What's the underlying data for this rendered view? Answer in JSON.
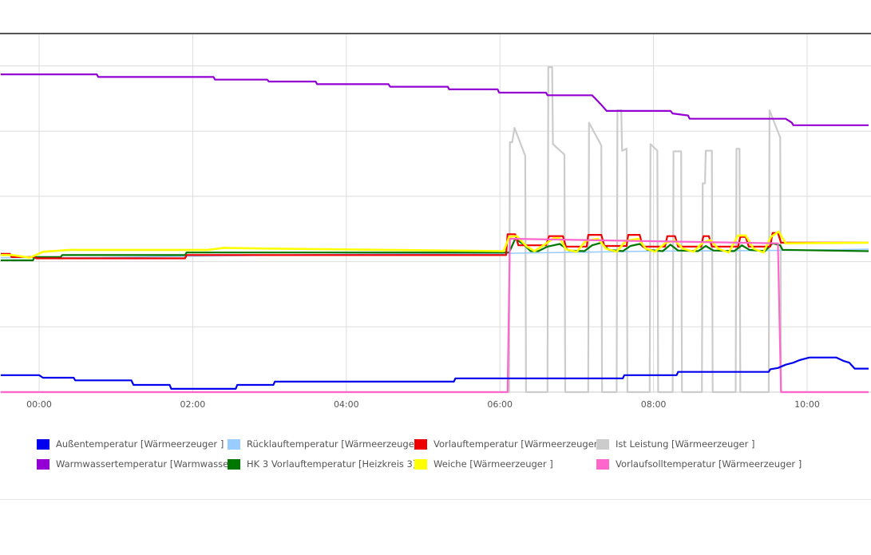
{
  "chart_data": {
    "type": "line",
    "x_unit": "hours",
    "xlim": [
      -0.5,
      10.8
    ],
    "ylim": [
      0,
      58
    ],
    "y_axis_labels_shown": false,
    "grid": true,
    "x_ticks": [
      {
        "value": 0,
        "label": "00:00"
      },
      {
        "value": 2,
        "label": "02:00"
      },
      {
        "value": 4,
        "label": "04:00"
      },
      {
        "value": 6,
        "label": "06:00"
      },
      {
        "value": 8,
        "label": "08:00"
      },
      {
        "value": 10,
        "label": "10:00"
      }
    ],
    "y_grid_values": [
      10,
      20,
      30,
      40,
      50
    ],
    "legend_position": "bottom",
    "series": [
      {
        "name": "Außentemperatur [Wärmeerzeuger ]",
        "color": "#0000ee",
        "step": true,
        "width": 2.2,
        "points": [
          [
            -0.5,
            2.6
          ],
          [
            0,
            2.6
          ],
          [
            0.05,
            2.2
          ],
          [
            0.45,
            2.2
          ],
          [
            0.47,
            1.8
          ],
          [
            1.2,
            1.8
          ],
          [
            1.23,
            1.1
          ],
          [
            1.7,
            1.1
          ],
          [
            1.72,
            0.5
          ],
          [
            2.56,
            0.5
          ],
          [
            2.58,
            1.1
          ],
          [
            3.05,
            1.1
          ],
          [
            3.07,
            1.6
          ],
          [
            5.4,
            1.6
          ],
          [
            5.42,
            2.1
          ],
          [
            7.6,
            2.1
          ],
          [
            7.62,
            2.6
          ],
          [
            8.3,
            2.6
          ],
          [
            8.32,
            3.1
          ],
          [
            9.5,
            3.1
          ],
          [
            9.52,
            3.5
          ],
          [
            9.62,
            3.7
          ],
          [
            9.72,
            4.2
          ],
          [
            9.82,
            4.5
          ],
          [
            9.9,
            4.9
          ],
          [
            10.03,
            5.3
          ],
          [
            10.38,
            5.3
          ],
          [
            10.47,
            4.8
          ],
          [
            10.55,
            4.5
          ],
          [
            10.62,
            3.6
          ],
          [
            10.8,
            3.6
          ]
        ]
      },
      {
        "name": "Warmwassertemperatur [Warmwasser ]",
        "color": "#9400d3",
        "step": true,
        "width": 2.2,
        "points": [
          [
            -0.5,
            48.7
          ],
          [
            0.75,
            48.7
          ],
          [
            0.77,
            48.3
          ],
          [
            2.27,
            48.3
          ],
          [
            2.29,
            47.9
          ],
          [
            2.97,
            47.9
          ],
          [
            2.99,
            47.6
          ],
          [
            3.6,
            47.6
          ],
          [
            3.62,
            47.2
          ],
          [
            4.55,
            47.2
          ],
          [
            4.57,
            46.8
          ],
          [
            5.32,
            46.8
          ],
          [
            5.34,
            46.4
          ],
          [
            5.97,
            46.4
          ],
          [
            5.99,
            45.9
          ],
          [
            6.6,
            45.9
          ],
          [
            6.62,
            45.5
          ],
          [
            7.2,
            45.5
          ],
          [
            7.25,
            44.9
          ],
          [
            7.33,
            43.9
          ],
          [
            7.39,
            43.1
          ],
          [
            8.22,
            43.1
          ],
          [
            8.25,
            42.7
          ],
          [
            8.45,
            42.4
          ],
          [
            8.47,
            41.9
          ],
          [
            9.72,
            41.9
          ],
          [
            9.8,
            41.3
          ],
          [
            9.82,
            40.9
          ],
          [
            10.8,
            40.9
          ]
        ]
      },
      {
        "name": "Rücklauftemperatur [Wärmeerzeuger ]",
        "color": "#99ccff",
        "width": 1.6,
        "points": [
          [
            -0.5,
            20.6
          ],
          [
            0.5,
            20.6
          ],
          [
            2.5,
            20.9
          ],
          [
            4.5,
            21.2
          ],
          [
            6.0,
            21.2
          ],
          [
            6.2,
            21.3
          ],
          [
            8.0,
            21.6
          ],
          [
            9.5,
            21.7
          ],
          [
            10.8,
            21.9
          ]
        ]
      },
      {
        "name": "Vorlauftemperatur [Wärmeerzeuger ]",
        "color": "#ee0000",
        "step": true,
        "width": 2.2,
        "points": [
          [
            -0.5,
            21.2
          ],
          [
            -0.38,
            21.2
          ],
          [
            -0.36,
            20.7
          ],
          [
            -0.06,
            20.7
          ],
          [
            -0.04,
            20.5
          ],
          [
            1.9,
            20.5
          ],
          [
            1.92,
            21.0
          ],
          [
            6.08,
            21.0
          ],
          [
            6.1,
            24.2
          ],
          [
            6.2,
            24.2
          ],
          [
            6.24,
            22.5
          ],
          [
            6.6,
            22.5
          ],
          [
            6.64,
            23.9
          ],
          [
            6.82,
            23.9
          ],
          [
            6.86,
            22.3
          ],
          [
            7.13,
            22.3
          ],
          [
            7.15,
            24.1
          ],
          [
            7.32,
            24.1
          ],
          [
            7.36,
            22.4
          ],
          [
            7.65,
            22.4
          ],
          [
            7.67,
            24.1
          ],
          [
            7.82,
            24.1
          ],
          [
            7.86,
            22.3
          ],
          [
            8.15,
            22.3
          ],
          [
            8.18,
            23.9
          ],
          [
            8.28,
            23.9
          ],
          [
            8.32,
            22.3
          ],
          [
            8.62,
            22.3
          ],
          [
            8.65,
            23.9
          ],
          [
            8.72,
            23.9
          ],
          [
            8.76,
            22.3
          ],
          [
            9.1,
            22.3
          ],
          [
            9.13,
            23.8
          ],
          [
            9.2,
            23.8
          ],
          [
            9.24,
            22.3
          ],
          [
            9.52,
            22.3
          ],
          [
            9.55,
            24.4
          ],
          [
            9.62,
            24.4
          ],
          [
            9.66,
            22.9
          ],
          [
            10.8,
            22.9
          ]
        ]
      },
      {
        "name": "HK 3 Vorlauftemperatur [Heizkreis 3]",
        "color": "#007700",
        "step": true,
        "width": 2.2,
        "points": [
          [
            -0.5,
            20.2
          ],
          [
            -0.08,
            20.2
          ],
          [
            -0.06,
            20.7
          ],
          [
            0.28,
            20.7
          ],
          [
            0.3,
            21.0
          ],
          [
            1.9,
            21.0
          ],
          [
            1.92,
            21.4
          ],
          [
            6.12,
            21.4
          ],
          [
            6.2,
            23.5
          ],
          [
            6.3,
            22.7
          ],
          [
            6.4,
            21.6
          ],
          [
            6.5,
            21.6
          ],
          [
            6.62,
            22.3
          ],
          [
            6.78,
            22.7
          ],
          [
            6.9,
            21.7
          ],
          [
            7.1,
            21.6
          ],
          [
            7.2,
            22.5
          ],
          [
            7.32,
            22.9
          ],
          [
            7.42,
            21.8
          ],
          [
            7.6,
            21.6
          ],
          [
            7.7,
            22.4
          ],
          [
            7.82,
            22.7
          ],
          [
            7.92,
            21.8
          ],
          [
            8.12,
            21.6
          ],
          [
            8.22,
            22.6
          ],
          [
            8.32,
            21.7
          ],
          [
            8.58,
            21.6
          ],
          [
            8.68,
            22.4
          ],
          [
            8.78,
            21.7
          ],
          [
            9.05,
            21.6
          ],
          [
            9.15,
            22.5
          ],
          [
            9.25,
            21.8
          ],
          [
            9.45,
            21.6
          ],
          [
            9.55,
            22.8
          ],
          [
            9.65,
            22.5
          ],
          [
            9.68,
            21.8
          ],
          [
            10.8,
            21.6
          ]
        ]
      },
      {
        "name": "Weiche [Wärmeerzeuger ]",
        "color": "#ffff00",
        "width": 2.6,
        "points": [
          [
            -0.5,
            21.0
          ],
          [
            -0.35,
            21.0
          ],
          [
            -0.12,
            20.6
          ],
          [
            0.05,
            21.5
          ],
          [
            0.4,
            21.8
          ],
          [
            2.2,
            21.8
          ],
          [
            2.4,
            22.1
          ],
          [
            3.0,
            22.0
          ],
          [
            6.05,
            21.6
          ],
          [
            6.12,
            23.8
          ],
          [
            6.22,
            23.9
          ],
          [
            6.35,
            22.3
          ],
          [
            6.45,
            21.6
          ],
          [
            6.58,
            22.6
          ],
          [
            6.7,
            23.6
          ],
          [
            6.78,
            23.6
          ],
          [
            6.86,
            21.9
          ],
          [
            7.0,
            21.5
          ],
          [
            7.12,
            23.2
          ],
          [
            7.28,
            23.5
          ],
          [
            7.38,
            22.0
          ],
          [
            7.52,
            21.5
          ],
          [
            7.64,
            23.2
          ],
          [
            7.8,
            23.5
          ],
          [
            7.9,
            22.0
          ],
          [
            8.02,
            21.5
          ],
          [
            8.16,
            22.9
          ],
          [
            8.28,
            23.2
          ],
          [
            8.38,
            22.0
          ],
          [
            8.52,
            21.5
          ],
          [
            8.64,
            22.9
          ],
          [
            8.74,
            23.3
          ],
          [
            8.84,
            22.0
          ],
          [
            8.98,
            21.4
          ],
          [
            9.1,
            24.0
          ],
          [
            9.2,
            24.0
          ],
          [
            9.3,
            22.0
          ],
          [
            9.43,
            21.4
          ],
          [
            9.53,
            23.8
          ],
          [
            9.63,
            24.6
          ],
          [
            9.72,
            22.8
          ],
          [
            10.8,
            22.9
          ]
        ]
      },
      {
        "name": "Ist Leistung [Wärmeerzeuger ]",
        "color": "#cccccc",
        "width": 2.2,
        "points": [
          [
            -0.5,
            0
          ],
          [
            6.12,
            0
          ],
          [
            6.13,
            38.3
          ],
          [
            6.16,
            38.3
          ],
          [
            6.19,
            40.5
          ],
          [
            6.33,
            36.2
          ],
          [
            6.34,
            0
          ],
          [
            6.62,
            0
          ],
          [
            6.63,
            49.8
          ],
          [
            6.68,
            49.8
          ],
          [
            6.69,
            38.0
          ],
          [
            6.84,
            36.4
          ],
          [
            6.85,
            0
          ],
          [
            7.15,
            0
          ],
          [
            7.16,
            41.3
          ],
          [
            7.32,
            37.8
          ],
          [
            7.33,
            0
          ],
          [
            7.52,
            0
          ],
          [
            7.53,
            43.2
          ],
          [
            7.58,
            43.2
          ],
          [
            7.59,
            37.0
          ],
          [
            7.65,
            37.3
          ],
          [
            7.66,
            0
          ],
          [
            7.95,
            0
          ],
          [
            7.96,
            38.0
          ],
          [
            8.05,
            37.0
          ],
          [
            8.06,
            0
          ],
          [
            8.25,
            0
          ],
          [
            8.26,
            36.9
          ],
          [
            8.36,
            36.9
          ],
          [
            8.37,
            0
          ],
          [
            8.63,
            0
          ],
          [
            8.64,
            32.0
          ],
          [
            8.67,
            32.0
          ],
          [
            8.68,
            37.0
          ],
          [
            8.76,
            37.0
          ],
          [
            8.77,
            0
          ],
          [
            9.07,
            0
          ],
          [
            9.08,
            37.3
          ],
          [
            9.12,
            37.3
          ],
          [
            9.13,
            0
          ],
          [
            9.5,
            0
          ],
          [
            9.51,
            43.2
          ],
          [
            9.65,
            39.0
          ],
          [
            9.66,
            0
          ],
          [
            10.8,
            0
          ]
        ]
      },
      {
        "name": "Vorlaufsolltemperatur [Wärmeerzeuger ]",
        "color": "#ff66cc",
        "width": 2.2,
        "points": [
          [
            -0.5,
            0
          ],
          [
            6.1,
            0
          ],
          [
            6.13,
            23.5
          ],
          [
            9.62,
            22.8
          ],
          [
            9.66,
            0
          ],
          [
            10.8,
            0
          ]
        ]
      }
    ]
  }
}
